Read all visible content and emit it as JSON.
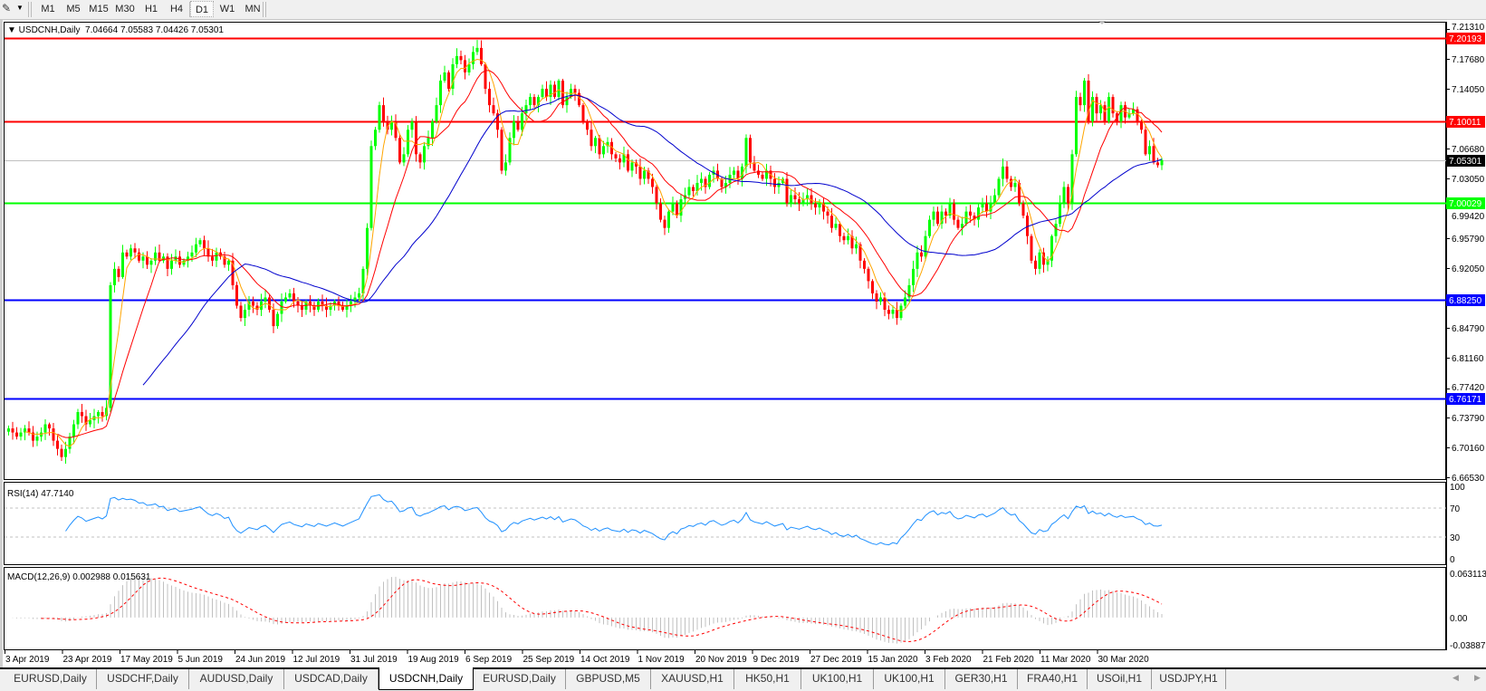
{
  "toolbar": {
    "tool_icon": "line-tools-icon",
    "timeframes": [
      "M1",
      "M5",
      "M15",
      "M30",
      "H1",
      "H4",
      "D1",
      "W1",
      "MN"
    ],
    "active_timeframe": "D1"
  },
  "chart": {
    "header": "USDCNH,Daily  7.04664 7.05583 7.04426 7.05301",
    "rsi_label": "RSI(14) 47.7140",
    "macd_label": "MACD(12,26,9) 0.002988 0.015631"
  },
  "chart_data": {
    "type": "candlestick",
    "symbol": "USDCNH",
    "timeframe": "Daily",
    "last_ohlc": {
      "open": 7.04664,
      "high": 7.05583,
      "low": 7.04426,
      "close": 7.05301
    },
    "price_ticks": [
      "7.21310",
      "7.17680",
      "7.14050",
      "7.06680",
      "7.03050",
      "6.99420",
      "6.95790",
      "6.92050",
      "6.84790",
      "6.81160",
      "6.77420",
      "6.73790",
      "6.70160",
      "6.66530"
    ],
    "price_range": [
      6.6653,
      7.2131
    ],
    "date_labels": [
      "3 Apr 2019",
      "23 Apr 2019",
      "17 May 2019",
      "5 Jun 2019",
      "24 Jun 2019",
      "12 Jul 2019",
      "31 Jul 2019",
      "19 Aug 2019",
      "6 Sep 2019",
      "25 Sep 2019",
      "14 Oct 2019",
      "1 Nov 2019",
      "20 Nov 2019",
      "9 Dec 2019",
      "27 Dec 2019",
      "15 Jan 2020",
      "3 Feb 2020",
      "21 Feb 2020",
      "11 Mar 2020",
      "30 Mar 2020"
    ],
    "bull_color": "#00ff00",
    "bear_color": "#ff0000",
    "horizontal_lines": [
      {
        "price": "7.20193",
        "color": "#ff0000",
        "label_text_color": "#ffffff"
      },
      {
        "price": "7.10011",
        "color": "#ff0000",
        "label_text_color": "#ffffff"
      },
      {
        "price": "7.05301",
        "color": "#c0c0c0",
        "label_bg": "#000000",
        "label_text_color": "#ffffff"
      },
      {
        "price": "7.00029",
        "color": "#00ff00",
        "label_text_color": "#ffffff"
      },
      {
        "price": "6.88250",
        "color": "#0000ff",
        "label_text_color": "#ffffff"
      },
      {
        "price": "6.76171",
        "color": "#0000ff",
        "label_text_color": "#ffffff"
      }
    ],
    "moving_averages": [
      {
        "period": 5,
        "color": "#ffa500"
      },
      {
        "period": 13,
        "color": "#ff0000"
      },
      {
        "period": 34,
        "color": "#0000cd"
      }
    ],
    "closes": [
      6.725,
      6.72,
      6.715,
      6.72,
      6.725,
      6.72,
      6.71,
      6.715,
      6.72,
      6.73,
      6.725,
      6.71,
      6.7,
      6.69,
      6.7,
      6.715,
      6.73,
      6.745,
      6.74,
      6.73,
      6.735,
      6.74,
      6.745,
      6.74,
      6.75,
      6.9,
      6.92,
      6.91,
      6.94,
      6.935,
      6.945,
      6.94,
      6.93,
      6.935,
      6.925,
      6.93,
      6.94,
      6.93,
      6.935,
      6.92,
      6.93,
      6.935,
      6.925,
      6.93,
      6.935,
      6.94,
      6.95,
      6.955,
      6.945,
      6.935,
      6.93,
      6.94,
      6.935,
      6.925,
      6.93,
      6.9,
      6.875,
      6.86,
      6.87,
      6.88,
      6.875,
      6.87,
      6.88,
      6.885,
      6.87,
      6.85,
      6.865,
      6.88,
      6.885,
      6.89,
      6.88,
      6.875,
      6.87,
      6.88,
      6.875,
      6.87,
      6.88,
      6.875,
      6.87,
      6.875,
      6.88,
      6.875,
      6.87,
      6.875,
      6.88,
      6.885,
      6.89,
      6.92,
      6.97,
      7.07,
      7.09,
      7.12,
      7.1,
      7.09,
      7.1,
      7.08,
      7.05,
      7.06,
      7.09,
      7.1,
      7.06,
      7.05,
      7.07,
      7.08,
      7.1,
      7.12,
      7.15,
      7.16,
      7.14,
      7.17,
      7.18,
      7.175,
      7.16,
      7.17,
      7.185,
      7.19,
      7.17,
      7.14,
      7.12,
      7.11,
      7.09,
      7.04,
      7.05,
      7.08,
      7.1,
      7.09,
      7.11,
      7.12,
      7.13,
      7.12,
      7.13,
      7.14,
      7.13,
      7.145,
      7.13,
      7.15,
      7.12,
      7.13,
      7.14,
      7.135,
      7.12,
      7.1,
      7.09,
      7.07,
      7.08,
      7.06,
      7.07,
      7.075,
      7.06,
      7.055,
      7.05,
      7.06,
      7.04,
      7.05,
      7.045,
      7.03,
      7.04,
      7.03,
      7.02,
      7.0,
      6.98,
      6.97,
      6.99,
      7.0,
      6.985,
      7.005,
      7.01,
      7.02,
      7.015,
      7.025,
      7.03,
      7.02,
      7.035,
      7.04,
      7.03,
      7.02,
      7.025,
      7.035,
      7.04,
      7.03,
      7.045,
      7.08,
      7.05,
      7.04,
      7.035,
      7.03,
      7.04,
      7.03,
      7.02,
      7.025,
      7.03,
      7.0,
      7.01,
      7.005,
      7.0,
      7.005,
      7.01,
      7.0,
      6.995,
      7.0,
      6.99,
      6.985,
      6.97,
      6.975,
      6.96,
      6.955,
      6.96,
      6.945,
      6.95,
      6.93,
      6.92,
      6.905,
      6.89,
      6.88,
      6.885,
      6.87,
      6.865,
      6.87,
      6.86,
      6.875,
      6.885,
      6.9,
      6.92,
      6.94,
      6.935,
      6.96,
      6.98,
      6.99,
      6.975,
      6.99,
      6.985,
      7.0,
      6.98,
      6.97,
      6.975,
      6.99,
      6.985,
      6.98,
      6.995,
      7.0,
      6.99,
      7.0,
      7.01,
      7.03,
      7.045,
      7.03,
      7.02,
      7.025,
      7.0,
      6.985,
      6.96,
      6.93,
      6.92,
      6.94,
      6.925,
      6.93,
      6.96,
      6.975,
      7.0,
      7.02,
      7.0,
      7.06,
      7.13,
      7.12,
      7.15,
      7.1,
      7.13,
      7.11,
      7.12,
      7.1,
      7.13,
      7.11,
      7.1,
      7.12,
      7.105,
      7.11,
      7.115,
      7.1,
      7.09,
      7.06,
      7.07,
      7.05,
      7.04664,
      7.05301
    ],
    "rsi": {
      "period": 14,
      "levels": [
        70,
        30
      ],
      "ticks": [
        "100",
        "70",
        "30",
        "0"
      ],
      "color": "#1e90ff"
    },
    "macd": {
      "fast": 12,
      "slow": 26,
      "signal": 9,
      "ticks": [
        "0.063113",
        "0.00",
        "-0.038872"
      ],
      "range": [
        -0.038872,
        0.063113
      ],
      "histogram_color": "#c0c0c0",
      "signal_color": "#ff0000"
    }
  },
  "tabs": {
    "items": [
      "EURUSD,Daily",
      "USDCHF,Daily",
      "AUDUSD,Daily",
      "USDCAD,Daily",
      "USDCNH,Daily",
      "EURUSD,Daily",
      "GBPUSD,M5",
      "XAUUSD,H1",
      "HK50,H1",
      "UK100,H1",
      "UK100,H1",
      "GER30,H1",
      "FRA40,H1",
      "USOil,H1",
      "USDJPY,H1"
    ],
    "active": 4
  }
}
